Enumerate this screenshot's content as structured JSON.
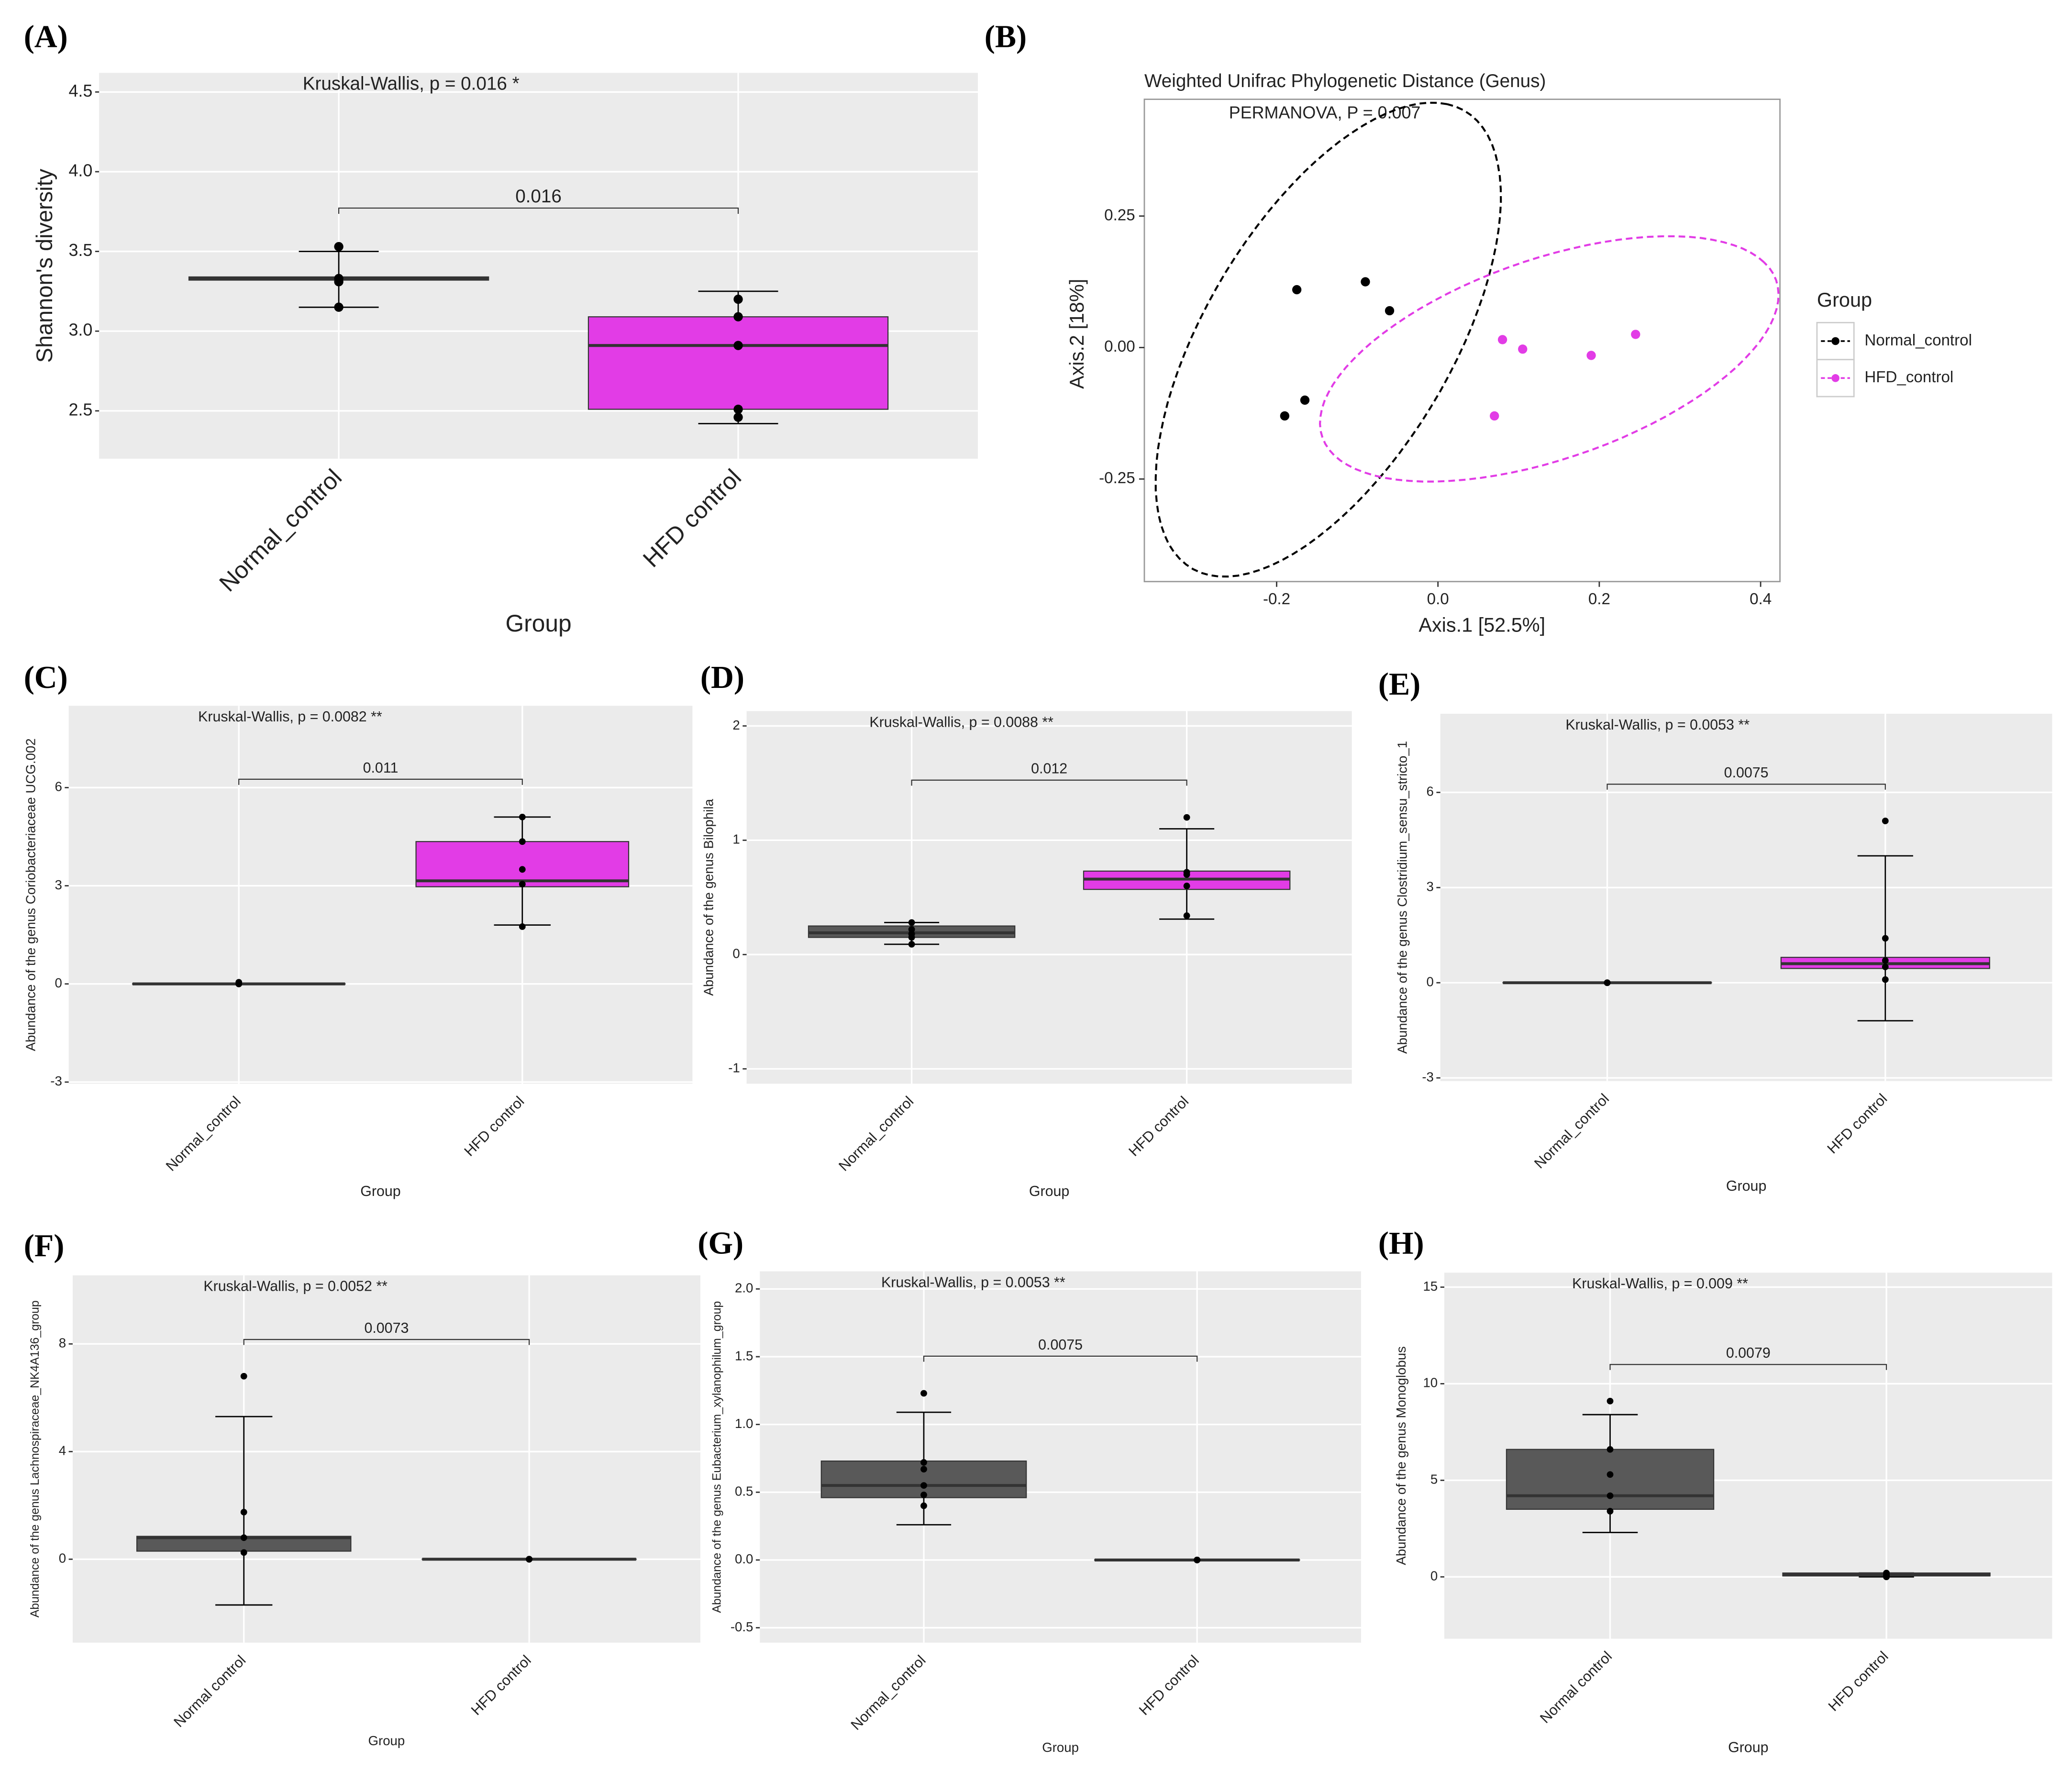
{
  "chart_data": [
    {
      "type": "box",
      "panel_label": "(A)",
      "annotation": "Kruskal-Wallis, p =  0.016 *",
      "bracket_label": "0.016",
      "x_label": "Group",
      "y_label": "Shannon's diversity",
      "categories": [
        "Normal_control",
        "HFD control"
      ],
      "ylim": [
        2.2,
        4.62
      ],
      "yticks": [
        2.5,
        {
          "value": 3,
          "label": "3.0"
        },
        3.5,
        {
          "value": 4,
          "label": "4.0"
        },
        4.5
      ],
      "grid": true,
      "boxes": [
        {
          "color": "#333333",
          "q1": 3.32,
          "median": 3.33,
          "q3": 3.34,
          "whisker_low": 3.15,
          "whisker_high": 3.5,
          "points": [
            3.53,
            3.33,
            3.31,
            3.15
          ]
        },
        {
          "color": "#e23ce6",
          "q1": 2.51,
          "median": 2.91,
          "q3": 3.09,
          "whisker_low": 2.42,
          "whisker_high": 3.25,
          "points": [
            3.2,
            3.09,
            2.91,
            2.51,
            2.46
          ]
        }
      ]
    },
    {
      "type": "scatter",
      "panel_label": "(B)",
      "title": "Weighted Unifrac Phylogenetic Distance (Genus)",
      "annotation": "PERMANOVA, P = 0.007",
      "x_label": "Axis.1 [52.5%]",
      "y_label": "Axis.2 [18%]",
      "legend_title": "Group",
      "legend": "right",
      "grid": false,
      "xlim": [
        -0.364,
        0.424
      ],
      "ylim": [
        -0.445,
        0.472
      ],
      "xticks": [
        -0.2,
        {
          "value": 0,
          "label": "0.0"
        },
        0.2,
        0.4
      ],
      "yticks": [
        -0.25,
        {
          "value": 0,
          "label": "0.00"
        },
        0.25
      ],
      "series": [
        {
          "name": "Normal_control",
          "color": "#000000",
          "x": [
            -0.175,
            -0.09,
            -0.06,
            -0.165,
            -0.19
          ],
          "y": [
            0.11,
            0.125,
            0.07,
            -0.1,
            -0.13
          ]
        },
        {
          "name": "HFD_control",
          "color": "#e23ce6",
          "x": [
            0.08,
            0.105,
            0.19,
            0.245,
            0.07
          ],
          "y": [
            0.015,
            -0.003,
            -0.015,
            0.025,
            -0.13
          ]
        }
      ]
    },
    {
      "type": "box",
      "panel_label": "(C)",
      "annotation": "Kruskal-Wallis, p =  0.0082 **",
      "bracket_label": "0.011",
      "x_label": "Group",
      "y_label": "Abundance of the genus Coriobacteriaceae UCG.002",
      "categories": [
        "Normal_control",
        "HFD control"
      ],
      "ylim": [
        -3.05,
        8.5
      ],
      "yticks": [
        -3,
        0,
        3,
        6
      ],
      "grid": true,
      "boxes": [
        {
          "color": "#595959",
          "q1": 0,
          "median": 0,
          "q3": 0,
          "whisker_low": 0,
          "whisker_high": 0,
          "points": [
            0.05,
            0,
            0,
            0,
            0
          ]
        },
        {
          "color": "#e23ce6",
          "q1": 2.97,
          "median": 3.15,
          "q3": 4.35,
          "whisker_low": 1.8,
          "whisker_high": 5.1,
          "points": [
            5.1,
            4.35,
            3.5,
            3.05,
            1.75
          ]
        }
      ]
    },
    {
      "type": "box",
      "panel_label": "(D)",
      "annotation": "Kruskal-Wallis, p =  0.0088 **",
      "bracket_label": "0.012",
      "x_label": "Group",
      "y_label": "Abundance of the genus Bilophila",
      "categories": [
        "Normal_control",
        "HFD control"
      ],
      "ylim": [
        -1.13,
        2.13
      ],
      "yticks": [
        -1,
        0,
        1,
        2
      ],
      "grid": true,
      "boxes": [
        {
          "color": "#595959",
          "q1": 0.15,
          "median": 0.19,
          "q3": 0.25,
          "whisker_low": 0.09,
          "whisker_high": 0.28,
          "points": [
            0.28,
            0.22,
            0.18,
            0.15,
            0.09
          ]
        },
        {
          "color": "#e23ce6",
          "q1": 0.57,
          "median": 0.66,
          "q3": 0.73,
          "whisker_low": 0.31,
          "whisker_high": 1.1,
          "points": [
            1.2,
            0.72,
            0.7,
            0.6,
            0.34
          ]
        }
      ]
    },
    {
      "type": "box",
      "panel_label": "(E)",
      "annotation": "Kruskal-Wallis, p =  0.0053 **",
      "bracket_label": "0.0075",
      "x_label": "Group",
      "y_label": "Abundance of the genus Clostridium_sensu_stricto_1",
      "categories": [
        "Normal_control",
        "HFD control"
      ],
      "ylim": [
        -3.1,
        8.48
      ],
      "yticks": [
        -3,
        0,
        3,
        6
      ],
      "grid": true,
      "boxes": [
        {
          "color": "#595959",
          "q1": 0,
          "median": 0,
          "q3": 0,
          "whisker_low": 0,
          "whisker_high": 0,
          "points": [
            0,
            0,
            0,
            0,
            0
          ]
        },
        {
          "color": "#e23ce6",
          "q1": 0.45,
          "median": 0.6,
          "q3": 0.8,
          "whisker_low": -1.2,
          "whisker_high": 4,
          "points": [
            5.1,
            1.4,
            0.7,
            0.5,
            0.1
          ]
        }
      ]
    },
    {
      "type": "box",
      "panel_label": "(F)",
      "annotation": "Kruskal-Wallis, p =  0.0052 **",
      "bracket_label": "0.0073",
      "x_label": "Group",
      "y_label": "Abundance of the genus Lachnospiraceae_NK4A136_group",
      "categories": [
        "Normal control",
        "HFD control"
      ],
      "ylim": [
        -3.1,
        10.55
      ],
      "yticks": [
        0,
        4,
        8
      ],
      "grid": true,
      "boxes": [
        {
          "color": "#595959",
          "q1": 0.3,
          "median": 0.8,
          "q3": 0.85,
          "whisker_low": -1.7,
          "whisker_high": 5.3,
          "points": [
            6.8,
            1.75,
            0.8,
            0.25
          ]
        },
        {
          "color": "#e23ce6",
          "q1": 0,
          "median": 0,
          "q3": 0,
          "whisker_low": 0,
          "whisker_high": 0,
          "points": [
            0,
            0,
            0,
            0,
            0
          ]
        }
      ]
    },
    {
      "type": "box",
      "panel_label": "(G)",
      "annotation": "Kruskal-Wallis, p =  0.0053 **",
      "bracket_label": "0.0075",
      "x_label": "Group",
      "y_label": "Abundance of the genus Eubacterium_xylanophilum_group",
      "categories": [
        "Normal_control",
        "HFD control"
      ],
      "ylim": [
        -0.61,
        2.13
      ],
      "yticks": [
        -0.5,
        {
          "value": 0,
          "label": "0.0"
        },
        0.5,
        {
          "value": 1,
          "label": "1.0"
        },
        1.5,
        {
          "value": 2,
          "label": "2.0"
        }
      ],
      "grid": true,
      "boxes": [
        {
          "color": "#595959",
          "q1": 0.46,
          "median": 0.55,
          "q3": 0.73,
          "whisker_low": 0.26,
          "whisker_high": 1.09,
          "points": [
            1.23,
            0.72,
            0.67,
            0.55,
            0.48,
            0.4
          ]
        },
        {
          "color": "#e23ce6",
          "q1": 0,
          "median": 0,
          "q3": 0,
          "whisker_low": 0,
          "whisker_high": 0,
          "points": [
            0,
            0,
            0,
            0,
            0
          ]
        }
      ]
    },
    {
      "type": "box",
      "panel_label": "(H)",
      "annotation": "Kruskal-Wallis, p =  0.009 **",
      "bracket_label": "0.0079",
      "x_label": "Group",
      "y_label": "Abundance of the genus Monoglobus",
      "categories": [
        "Normal control",
        "HFD control"
      ],
      "ylim": [
        -3.2,
        15.75
      ],
      "yticks": [
        0,
        5,
        10,
        15
      ],
      "grid": true,
      "boxes": [
        {
          "color": "#595959",
          "q1": 3.5,
          "median": 4.2,
          "q3": 6.6,
          "whisker_low": 2.3,
          "whisker_high": 8.4,
          "points": [
            9.1,
            6.6,
            5.3,
            4.2,
            3.4
          ]
        },
        {
          "color": "#9b3fa0",
          "q1": 0.05,
          "median": 0.1,
          "q3": 0.2,
          "whisker_low": 0,
          "whisker_high": 0.2,
          "points": [
            0.2,
            0.1,
            0.05,
            0
          ]
        }
      ]
    }
  ]
}
